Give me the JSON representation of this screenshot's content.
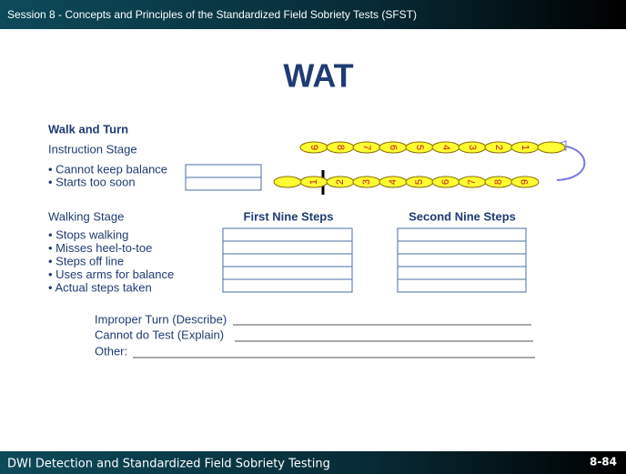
{
  "header": {
    "session": "Session 8 - Concepts and Principles of the Standardized Field Sobriety Tests (SFST)"
  },
  "title": "WAT",
  "section_title": "Walk and Turn",
  "instruction_stage": {
    "label": "Instruction Stage",
    "items": [
      "• Cannot keep balance",
      "• Starts too soon"
    ]
  },
  "walking_stage": {
    "label": "Walking Stage",
    "columns": [
      "First Nine Steps",
      "Second Nine Steps"
    ],
    "items": [
      "• Stops walking",
      "• Misses heel-to-toe",
      "• Steps off line",
      "• Uses arms for balance",
      "• Actual steps taken"
    ]
  },
  "remarks": [
    "Improper Turn (Describe)",
    "Cannot do Test (Explain)",
    "Other:"
  ],
  "diagram": {
    "return_steps": [
      9,
      8,
      7,
      6,
      5,
      4,
      3,
      2,
      1
    ],
    "outbound_steps": [
      1,
      2,
      3,
      4,
      5,
      6,
      7,
      8,
      9
    ]
  },
  "footer": {
    "course": "DWI Detection and Standardized Field Sobriety Testing",
    "page": "8-84"
  }
}
